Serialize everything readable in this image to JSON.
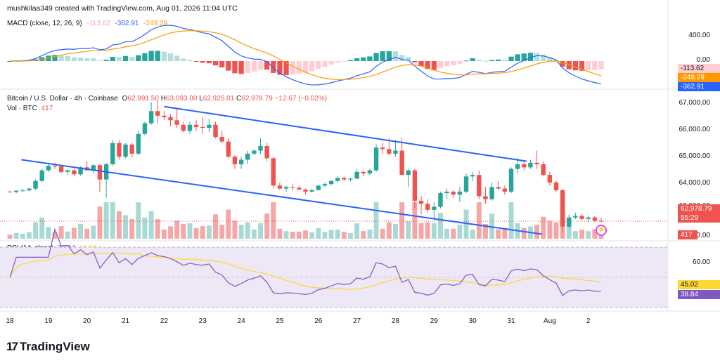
{
  "header": {
    "credit": "mushkilaa349 created with TradingView.com, Aug 01, 2026 11:04 UTC"
  },
  "macd": {
    "label": "MACD (close, 12, 26, 9)",
    "v_hist": "-113.62",
    "v_macd": "-362.91",
    "v_signal": "-249.29",
    "axis": [
      "400.00",
      "0.00"
    ],
    "tag_hist": "-113.62",
    "tag_signal": "-249.29",
    "tag_macd": "-362.91",
    "colors": {
      "macd": "#2962ff",
      "signal": "#ff9800",
      "hist_pos_strong": "#26a69a",
      "hist_pos_weak": "#b2dfdb",
      "hist_neg_strong": "#ef5350",
      "hist_neg_weak": "#ffcdd2"
    }
  },
  "price": {
    "title": "Bitcoin / U.S. Dollar · 4h · Coinbase",
    "o_label": "O",
    "o": "62,991.50",
    "h_label": "H",
    "h": "63,093.00",
    "l_label": "L",
    "l": "62,925.01",
    "c_label": "C",
    "c": "62,978.79",
    "change": "−12.67 (−0.02%)",
    "vol_label": "Vol · BTC",
    "vol": "417",
    "axis": [
      "67,000.00",
      "66,000.00",
      "65,000.00",
      "64,000.00",
      "63,000.00"
    ],
    "last_price_tag": "62,978.79",
    "countdown": "55:29",
    "vol_tag": "417",
    "vol_axis": "00.00",
    "colors": {
      "up": "#26a69a",
      "down": "#ef5350",
      "channel": "#2962ff"
    }
  },
  "rsi": {
    "label": "RSI (14, close)",
    "v_rsi": "38.84",
    "v_ma": "45.02",
    "axis": [
      "60.00"
    ],
    "tag_ma": "45.02",
    "tag_rsi": "38.84",
    "colors": {
      "rsi": "#7e57c2",
      "ma": "#fdd835",
      "band": "#ede7f6"
    }
  },
  "x_axis": [
    "18",
    "19",
    "20",
    "21",
    "22",
    "23",
    "24",
    "25",
    "26",
    "27",
    "28",
    "29",
    "30",
    "31",
    "Aug",
    "2"
  ],
  "brand": "TradingView",
  "chart_data": {
    "type": "candlestick",
    "timeframe": "4h",
    "candles_ohlc": [
      [
        63950,
        63980,
        63920,
        63940
      ],
      [
        63940,
        64000,
        63900,
        63980
      ],
      [
        63980,
        64050,
        63940,
        63990
      ],
      [
        63990,
        64080,
        63960,
        64050
      ],
      [
        64050,
        64350,
        64000,
        64300
      ],
      [
        64300,
        64700,
        64250,
        64650
      ],
      [
        64650,
        64850,
        64600,
        64800
      ],
      [
        64800,
        64900,
        64700,
        64780
      ],
      [
        64780,
        64800,
        64550,
        64600
      ],
      [
        64600,
        64680,
        64500,
        64650
      ],
      [
        64650,
        64700,
        64450,
        64520
      ],
      [
        64520,
        64780,
        64480,
        64750
      ],
      [
        64750,
        64950,
        64700,
        64650
      ],
      [
        64650,
        64850,
        64550,
        64820
      ],
      [
        64820,
        64850,
        63950,
        64350
      ],
      [
        64350,
        64900,
        63750,
        64850
      ],
      [
        64850,
        65650,
        64800,
        65550
      ],
      [
        65550,
        65650,
        65000,
        65100
      ],
      [
        65100,
        65550,
        65050,
        65500
      ],
      [
        65500,
        65550,
        65080,
        65200
      ],
      [
        65200,
        65950,
        65150,
        65850
      ],
      [
        65850,
        66250,
        65800,
        66200
      ],
      [
        66200,
        66900,
        66150,
        66600
      ],
      [
        66600,
        66950,
        66200,
        66450
      ],
      [
        66450,
        66600,
        66300,
        66400
      ],
      [
        66400,
        66500,
        66100,
        66300
      ],
      [
        66300,
        66700,
        66050,
        66150
      ],
      [
        66150,
        66250,
        65900,
        65950
      ],
      [
        65950,
        66250,
        65850,
        66150
      ],
      [
        66150,
        66300,
        65950,
        66080
      ],
      [
        66080,
        66400,
        65850,
        66050
      ],
      [
        66050,
        66350,
        65900,
        66150
      ],
      [
        66150,
        66250,
        65700,
        65750
      ],
      [
        65750,
        65950,
        65550,
        65600
      ],
      [
        65600,
        65700,
        65050,
        65100
      ],
      [
        65100,
        65150,
        64700,
        64850
      ],
      [
        64850,
        65100,
        64700,
        65000
      ],
      [
        65000,
        65300,
        64850,
        65200
      ],
      [
        65200,
        65350,
        65150,
        65300
      ],
      [
        65300,
        65700,
        65200,
        65450
      ],
      [
        65450,
        65550,
        64950,
        65050
      ],
      [
        65050,
        65100,
        64050,
        64150
      ],
      [
        64150,
        64250,
        64000,
        64050
      ],
      [
        64050,
        64150,
        63950,
        64100
      ],
      [
        64100,
        64200,
        63980,
        64080
      ],
      [
        64080,
        64150,
        64000,
        64020
      ],
      [
        64020,
        64050,
        63850,
        63950
      ],
      [
        63950,
        64050,
        63920,
        64000
      ],
      [
        64000,
        64180,
        63980,
        64150
      ],
      [
        64150,
        64250,
        64100,
        64200
      ],
      [
        64200,
        64330,
        64150,
        64300
      ],
      [
        64300,
        64450,
        64250,
        64400
      ],
      [
        64400,
        64450,
        64300,
        64350
      ],
      [
        64350,
        64400,
        64280,
        64380
      ],
      [
        64380,
        64700,
        64350,
        64600
      ],
      [
        64600,
        64650,
        64450,
        64550
      ],
      [
        64550,
        64700,
        64500,
        64650
      ],
      [
        64650,
        65500,
        64600,
        65400
      ],
      [
        65400,
        65550,
        65200,
        65350
      ],
      [
        65350,
        65700,
        65150,
        65200
      ],
      [
        65200,
        65650,
        65100,
        65300
      ],
      [
        65300,
        65700,
        65050,
        64500
      ],
      [
        64500,
        64700,
        64100,
        64650
      ],
      [
        64650,
        64700,
        63400,
        63650
      ],
      [
        63650,
        63800,
        63200,
        63550
      ],
      [
        63550,
        63700,
        63250,
        63350
      ],
      [
        63350,
        63600,
        63000,
        63450
      ],
      [
        63450,
        63950,
        63400,
        63900
      ],
      [
        63900,
        64050,
        63700,
        63950
      ],
      [
        63950,
        64000,
        63750,
        63850
      ],
      [
        63850,
        64100,
        63600,
        63950
      ],
      [
        63950,
        64550,
        63900,
        64450
      ],
      [
        64450,
        64600,
        64300,
        64500
      ],
      [
        64500,
        64650,
        63700,
        63800
      ],
      [
        63800,
        64100,
        63550,
        63700
      ],
      [
        63700,
        64250,
        63650,
        64100
      ],
      [
        64100,
        64300,
        64000,
        64050
      ],
      [
        64050,
        64150,
        63850,
        63950
      ],
      [
        63950,
        64750,
        63900,
        64700
      ],
      [
        64700,
        65050,
        64550,
        64850
      ],
      [
        64850,
        64950,
        64650,
        64750
      ],
      [
        64750,
        65000,
        64700,
        64900
      ],
      [
        64900,
        65300,
        64700,
        64850
      ],
      [
        64850,
        64950,
        64450,
        64500
      ],
      [
        64500,
        64600,
        64150,
        64250
      ],
      [
        64250,
        64300,
        63950,
        64000
      ],
      [
        64000,
        64050,
        62600,
        62800
      ],
      [
        62800,
        63200,
        62750,
        63100
      ],
      [
        63100,
        63250,
        63050,
        63150
      ],
      [
        63150,
        63200,
        63000,
        63050
      ],
      [
        63050,
        63150,
        62950,
        63100
      ],
      [
        63100,
        63150,
        62950,
        62990
      ],
      [
        62991.5,
        63093,
        62925.01,
        62978.79
      ]
    ],
    "channel_upper": [
      [
        22,
        66750
      ],
      [
        31.4,
        64950
      ]
    ],
    "channel_lower_a": [
      [
        18.3,
        65000
      ],
      [
        31.8,
        62550
      ]
    ],
    "price_range": [
      62400,
      67300
    ],
    "last_price": 62978.79,
    "rsi_last": 38.84,
    "rsi_ma_last": 45.02,
    "macd_last": -362.91,
    "signal_last": -249.29,
    "histogram_last": -113.62
  }
}
